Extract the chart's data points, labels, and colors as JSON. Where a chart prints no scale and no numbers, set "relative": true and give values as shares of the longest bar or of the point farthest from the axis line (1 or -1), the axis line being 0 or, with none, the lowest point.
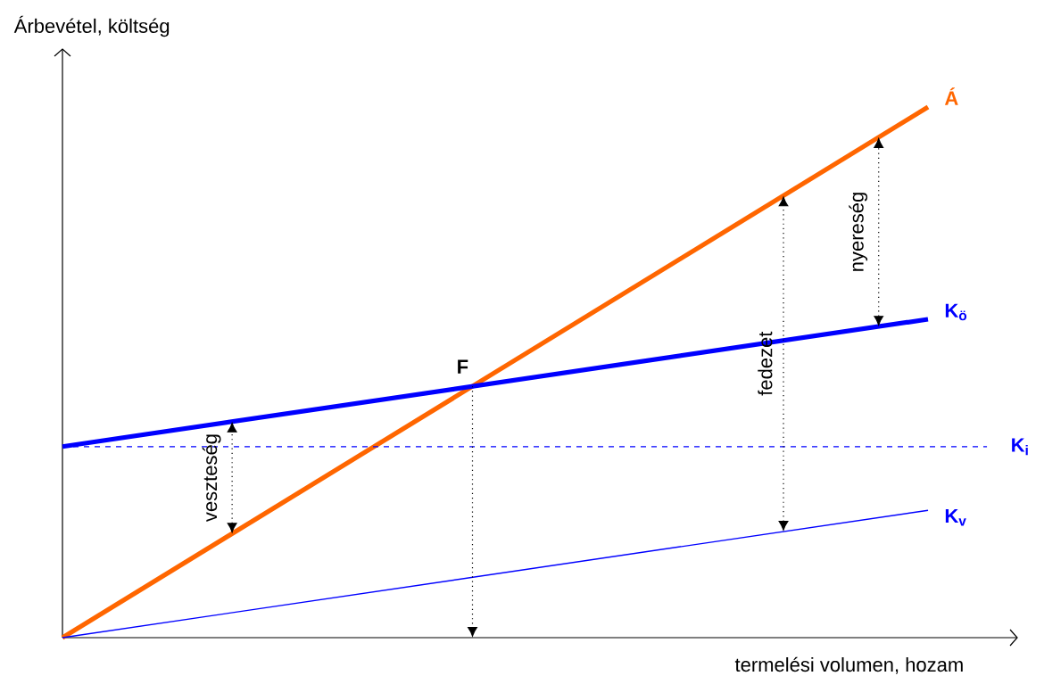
{
  "chart_data": {
    "type": "line",
    "relative": true,
    "ylabel": "Árbevétel, költség",
    "xlabel": "termelési volumen, hozam",
    "categories": [
      null,
      null
    ],
    "series": [
      {
        "name": "Á",
        "color": "#ff6600",
        "values": [
          0,
          1
        ]
      },
      {
        "name": "K$_{ö}$",
        "color": "#0000ff",
        "values": [
          0.36,
          0.6
        ]
      },
      {
        "name": "K$_{v}$",
        "color": "#0000ff",
        "values": [
          0,
          0.24
        ]
      }
    ],
    "ref_lines": [
      {
        "axis": "y",
        "value": 0.36,
        "label": "K$_{i}$",
        "color": "#0000ff",
        "line_style": "dashed"
      }
    ],
    "annotations": [
      "F",
      "veszteség",
      "fedezet",
      "nyereség"
    ]
  }
}
